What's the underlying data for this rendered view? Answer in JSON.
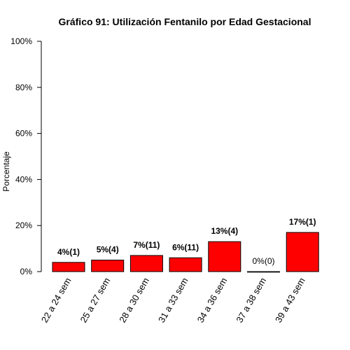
{
  "chart_data": {
    "type": "bar",
    "title": "Gráfico 91: Utilización Fentanilo por  Edad Gestacional",
    "xlabel": "",
    "ylabel": "Porcentaje",
    "ylim": [
      0,
      100
    ],
    "yticks": [
      "0%",
      "20%",
      "40%",
      "60%",
      "80%",
      "100%"
    ],
    "categories": [
      "22 a 24 sem",
      "25 a 27 sem",
      "28 a 30 sem",
      "31 a 33 sem",
      "34 a 36 sem",
      "37 a 38 sem",
      "39 a 43 sem"
    ],
    "values": [
      4,
      5,
      7,
      6,
      13,
      0,
      17
    ],
    "data_labels": [
      "4%(1)",
      "5%(4)",
      "7%(11)",
      "6%(11)",
      "13%(4)",
      "0%(0)",
      "17%(1)"
    ],
    "bold_labels": [
      true,
      true,
      true,
      true,
      true,
      false,
      true
    ],
    "bar_color": "#ff0000",
    "grid": false,
    "legend": "none"
  }
}
